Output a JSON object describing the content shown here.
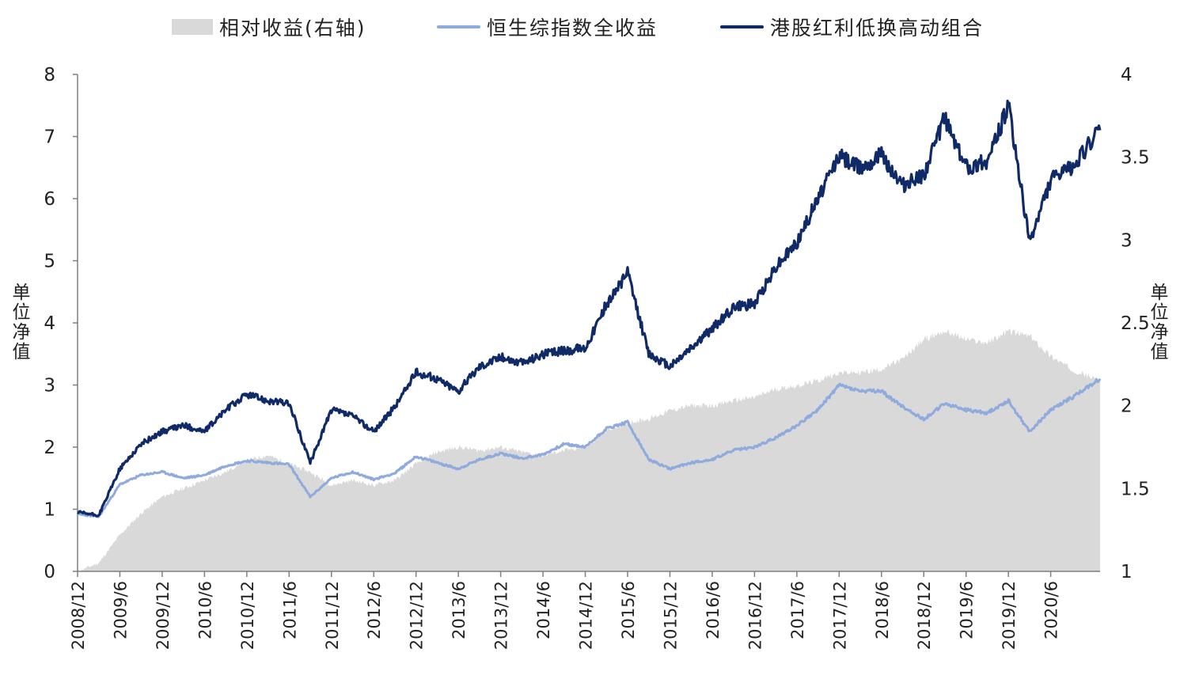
{
  "legend": {
    "area_label": "相对收益(右轴)",
    "light_label": "恒生综指数全收益",
    "dark_label": "港股红利低换高动组合"
  },
  "axes": {
    "left_title": "单\n位\n净\n值",
    "right_title": "单\n位\n净\n值",
    "left_ticks": [
      "0",
      "1",
      "2",
      "3",
      "4",
      "5",
      "6",
      "7",
      "8"
    ],
    "right_ticks": [
      "1",
      "1.5",
      "2",
      "2.5",
      "3",
      "3.5",
      "4"
    ],
    "x_ticks": [
      "2008/12",
      "2009/6",
      "2009/12",
      "2010/6",
      "2010/12",
      "2011/6",
      "2011/12",
      "2012/6",
      "2012/12",
      "2013/6",
      "2013/12",
      "2014/6",
      "2014/12",
      "2015/6",
      "2015/12",
      "2016/6",
      "2016/12",
      "2017/6",
      "2017/12",
      "2018/6",
      "2018/12",
      "2019/6",
      "2019/12",
      "2020/6"
    ]
  },
  "chart_data": {
    "type": "line",
    "x_axis": {
      "type": "date",
      "range": [
        "2008/12",
        "2021/01"
      ],
      "tick_labels": [
        "2008/12",
        "2009/6",
        "2009/12",
        "2010/6",
        "2010/12",
        "2011/6",
        "2011/12",
        "2012/6",
        "2012/12",
        "2013/6",
        "2013/12",
        "2014/6",
        "2014/12",
        "2015/6",
        "2015/12",
        "2016/6",
        "2016/12",
        "2017/6",
        "2017/12",
        "2018/6",
        "2018/12",
        "2019/6",
        "2019/12",
        "2020/6"
      ]
    },
    "y_left": {
      "label": "单位净值",
      "range": [
        0,
        8
      ],
      "ticks": [
        0,
        1,
        2,
        3,
        4,
        5,
        6,
        7,
        8
      ]
    },
    "y_right": {
      "label": "单位净值",
      "range": [
        1,
        4
      ],
      "ticks": [
        1,
        1.5,
        2,
        2.5,
        3,
        3.5,
        4
      ]
    },
    "grid": false,
    "legend_position": "top",
    "series": [
      {
        "name": "相对收益(右轴)",
        "type": "area",
        "axis": "right",
        "color": "#d9d9d9",
        "x": [
          "2008/12",
          "2009/3",
          "2009/6",
          "2009/9",
          "2009/12",
          "2010/3",
          "2010/6",
          "2010/9",
          "2010/12",
          "2011/3",
          "2011/6",
          "2011/9",
          "2011/12",
          "2012/3",
          "2012/6",
          "2012/9",
          "2012/12",
          "2013/3",
          "2013/6",
          "2013/9",
          "2013/12",
          "2014/3",
          "2014/6",
          "2014/9",
          "2014/12",
          "2015/3",
          "2015/6",
          "2015/9",
          "2015/12",
          "2016/3",
          "2016/6",
          "2016/9",
          "2016/12",
          "2017/3",
          "2017/6",
          "2017/9",
          "2017/12",
          "2018/3",
          "2018/6",
          "2018/9",
          "2018/12",
          "2019/3",
          "2019/6",
          "2019/9",
          "2019/12",
          "2020/3",
          "2020/6",
          "2020/9",
          "2021/1"
        ],
        "values": [
          1.0,
          1.05,
          1.22,
          1.35,
          1.45,
          1.5,
          1.55,
          1.6,
          1.67,
          1.7,
          1.65,
          1.6,
          1.52,
          1.55,
          1.52,
          1.55,
          1.65,
          1.72,
          1.75,
          1.73,
          1.75,
          1.72,
          1.7,
          1.73,
          1.75,
          1.85,
          1.9,
          1.92,
          1.97,
          2.0,
          2.0,
          2.03,
          2.05,
          2.1,
          2.12,
          2.15,
          2.2,
          2.2,
          2.22,
          2.28,
          2.4,
          2.45,
          2.4,
          2.38,
          2.45,
          2.42,
          2.3,
          2.22,
          2.15
        ]
      },
      {
        "name": "恒生综指数全收益",
        "type": "line",
        "axis": "left",
        "color": "#8faadc",
        "x": [
          "2008/12",
          "2009/3",
          "2009/6",
          "2009/9",
          "2009/12",
          "2010/3",
          "2010/6",
          "2010/9",
          "2010/12",
          "2011/3",
          "2011/6",
          "2011/9",
          "2011/12",
          "2012/3",
          "2012/6",
          "2012/9",
          "2012/12",
          "2013/3",
          "2013/6",
          "2013/9",
          "2013/12",
          "2014/3",
          "2014/6",
          "2014/9",
          "2014/12",
          "2015/3",
          "2015/6",
          "2015/9",
          "2015/12",
          "2016/3",
          "2016/6",
          "2016/9",
          "2016/12",
          "2017/3",
          "2017/6",
          "2017/9",
          "2017/12",
          "2018/3",
          "2018/6",
          "2018/9",
          "2018/12",
          "2019/3",
          "2019/6",
          "2019/9",
          "2019/12",
          "2020/3",
          "2020/6",
          "2020/9",
          "2021/1"
        ],
        "values": [
          0.92,
          0.88,
          1.4,
          1.55,
          1.6,
          1.5,
          1.55,
          1.7,
          1.78,
          1.75,
          1.72,
          1.2,
          1.5,
          1.6,
          1.48,
          1.58,
          1.85,
          1.75,
          1.65,
          1.8,
          1.9,
          1.82,
          1.88,
          2.05,
          2.0,
          2.3,
          2.4,
          1.8,
          1.65,
          1.75,
          1.8,
          1.95,
          2.0,
          2.15,
          2.35,
          2.6,
          3.0,
          2.9,
          2.9,
          2.65,
          2.45,
          2.7,
          2.6,
          2.55,
          2.75,
          2.25,
          2.6,
          2.8,
          3.1
        ]
      },
      {
        "name": "港股红利低换高动组合",
        "type": "line",
        "axis": "left",
        "color": "#0f2a66",
        "x": [
          "2008/12",
          "2009/3",
          "2009/6",
          "2009/9",
          "2009/12",
          "2010/3",
          "2010/6",
          "2010/9",
          "2010/12",
          "2011/3",
          "2011/6",
          "2011/9",
          "2011/12",
          "2012/3",
          "2012/6",
          "2012/9",
          "2012/12",
          "2013/3",
          "2013/6",
          "2013/9",
          "2013/12",
          "2014/3",
          "2014/6",
          "2014/9",
          "2014/12",
          "2015/3",
          "2015/6",
          "2015/9",
          "2015/12",
          "2016/3",
          "2016/6",
          "2016/9",
          "2016/12",
          "2017/3",
          "2017/6",
          "2017/9",
          "2017/12",
          "2018/3",
          "2018/6",
          "2018/9",
          "2018/12",
          "2019/3",
          "2019/6",
          "2019/9",
          "2019/12",
          "2020/3",
          "2020/6",
          "2020/9",
          "2021/1"
        ],
        "values": [
          0.95,
          0.9,
          1.65,
          2.05,
          2.25,
          2.35,
          2.25,
          2.6,
          2.85,
          2.75,
          2.7,
          1.75,
          2.6,
          2.5,
          2.25,
          2.65,
          3.2,
          3.1,
          2.9,
          3.3,
          3.45,
          3.35,
          3.5,
          3.55,
          3.6,
          4.3,
          4.8,
          3.5,
          3.3,
          3.6,
          3.9,
          4.25,
          4.3,
          4.9,
          5.3,
          6.0,
          6.7,
          6.5,
          6.7,
          6.2,
          6.4,
          7.3,
          6.5,
          6.6,
          7.5,
          5.3,
          6.3,
          6.5,
          7.1
        ]
      }
    ]
  }
}
